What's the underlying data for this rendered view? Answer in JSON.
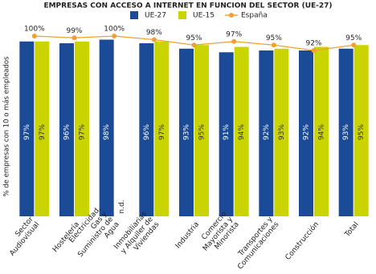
{
  "chart_data": {
    "type": "bar",
    "title": "EMPRESAS CON ACCESO A INTERNET EN FUNCION DEL SECTOR (UE-27)",
    "y_label": "% de empresas con 10 o más empleados",
    "categories": [
      "Sector Audiovisual",
      "Hostelería",
      "Electricidad, Gas y Suministro de Agua",
      "Inmobiliarias y Alquiler de Viviendas",
      "Industria",
      "Comercio Mayorista y Minorista",
      "Transportes y Comunicaciones",
      "Construcción",
      "Total"
    ],
    "series": [
      {
        "name": "UE-27",
        "type": "bar",
        "color": "#1b4a97",
        "values": [
          97,
          96,
          98,
          96,
          93,
          91,
          92,
          92,
          93
        ],
        "value_labels": [
          "97%",
          "96%",
          "98%",
          "96%",
          "93%",
          "91%",
          "92%",
          "92%",
          "93%"
        ]
      },
      {
        "name": "UE-15",
        "type": "bar",
        "color": "#c9d400",
        "values": [
          97,
          97,
          null,
          97,
          95,
          94,
          93,
          94,
          95
        ],
        "value_labels": [
          "97%",
          "97%",
          "n.d.",
          "97%",
          "95%",
          "94%",
          "93%",
          "94%",
          "95%"
        ]
      },
      {
        "name": "España",
        "type": "line",
        "color": "#f0a032",
        "values": [
          100,
          99,
          100,
          98,
          95,
          97,
          95,
          92,
          95
        ],
        "value_labels": [
          "100%",
          "99%",
          "100%",
          "98%",
          "95%",
          "97%",
          "95%",
          "92%",
          "95%"
        ]
      }
    ],
    "ylim": [
      0,
      100
    ],
    "grid": false
  }
}
